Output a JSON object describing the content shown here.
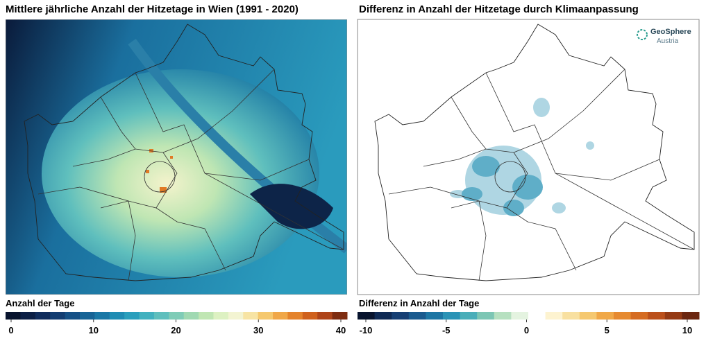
{
  "panels": [
    {
      "title": "Mittlere jährliche Anzahl der Hitzetage in Wien (1991 - 2020)",
      "legend": {
        "label": "Anzahl der Tage",
        "ticks": [
          0,
          10,
          20,
          30,
          40
        ],
        "colors": [
          "#08142e",
          "#0c1f45",
          "#102c5c",
          "#133d72",
          "#155086",
          "#176496",
          "#1a78a6",
          "#1f8cb3",
          "#2a9fbc",
          "#42b1bf",
          "#5fbfbd",
          "#7fccb7",
          "#a0d9b2",
          "#c0e6b3",
          "#ddf1c2",
          "#f3f4d2",
          "#f7e4a4",
          "#f5c86e",
          "#f0a748",
          "#e4832c",
          "#cf611d",
          "#ae4419",
          "#7e2c10"
        ]
      }
    },
    {
      "title": "Differenz in Anzahl der Hitzetage durch Klimaanpassung",
      "legend": {
        "label": "Differenz in Anzahl der Tage",
        "ticks": [
          -10,
          -5,
          0,
          5,
          10
        ],
        "colors": [
          "#08142e",
          "#0f2a55",
          "#163f74",
          "#1a5a8e",
          "#1d76a4",
          "#2a93b6",
          "#4aaeb9",
          "#7cc6b4",
          "#b6e0c0",
          "#e4f3e0",
          "#ffffff",
          "#fdf3d0",
          "#f8e0a0",
          "#f5c870",
          "#f0a848",
          "#e68a30",
          "#d56c22",
          "#bb501b",
          "#953a14",
          "#6b2610"
        ]
      }
    }
  ],
  "logo": {
    "name": "GeoSphere",
    "sub": "Austria"
  }
}
